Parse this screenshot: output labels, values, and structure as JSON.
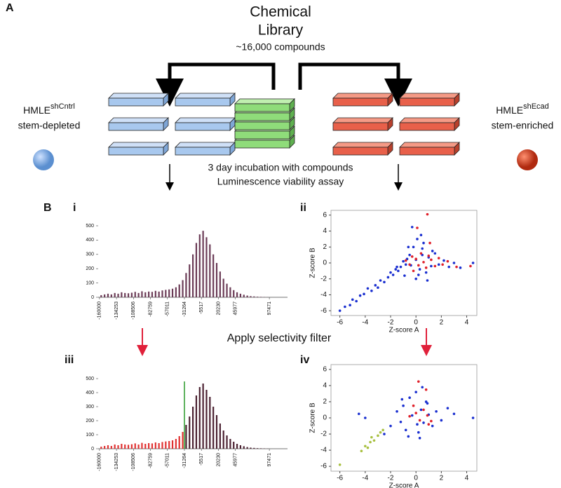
{
  "figure": {
    "panel_a": "A",
    "title_line1": "Chemical",
    "title_line2": "Library",
    "subtitle": "~16,000 compounds",
    "left_cell": {
      "name": "HMLE",
      "superscript": "shCntrl",
      "description": "stem-depleted"
    },
    "right_cell": {
      "name": "HMLE",
      "superscript": "shEcad",
      "description": "stem-enriched"
    },
    "step_line1": "3 day incubation with compounds",
    "step_line2": "Luminescence viability assay",
    "panel_b": "B",
    "sub_i": "i",
    "sub_ii": "ii",
    "sub_iii": "iii",
    "sub_iv": "iv",
    "filter": "Apply selectivity filter"
  },
  "chart_data": [
    {
      "type": "histogram",
      "bins": [
        -160000,
        -154851,
        -149701,
        -144552,
        -139402,
        -134253,
        -129104,
        -123954,
        -118805,
        -113655,
        -108506,
        -103357,
        -98207,
        -93058,
        -87908,
        -82759,
        -77610,
        -72460,
        -67311,
        -62161,
        -57012,
        -51863,
        -46713,
        -41564,
        -36414,
        -31265,
        -26116,
        -20966,
        -15817,
        -10667,
        -5518,
        -369,
        4781,
        9930,
        15080,
        20229,
        25378,
        30528,
        35677,
        40827,
        45976,
        51125,
        56275,
        61424,
        66574,
        71723,
        76872,
        82022,
        87171,
        92321,
        97470
      ],
      "values": [
        15,
        20,
        25,
        20,
        30,
        25,
        35,
        30,
        28,
        32,
        38,
        30,
        42,
        35,
        40,
        38,
        45,
        40,
        48,
        52,
        55,
        60,
        70,
        90,
        120,
        170,
        230,
        300,
        380,
        440,
        465,
        420,
        370,
        300,
        240,
        180,
        130,
        95,
        70,
        50,
        35,
        25,
        18,
        12,
        8,
        6,
        4,
        3,
        2,
        1
      ],
      "color": "#6a3a55",
      "xlim": [
        -162000,
        125000
      ],
      "ylim": [
        0,
        500
      ],
      "xticks": [
        -160000,
        -134253,
        -108506,
        -82759,
        -57011,
        -31264,
        -5517,
        20230,
        45977,
        97471
      ],
      "yticks": [
        0,
        100,
        200,
        300,
        400,
        500
      ]
    },
    {
      "type": "scatter",
      "xlabel": "Z-score A",
      "ylabel": "Z-score B",
      "xlim": [
        -6.7,
        4.8
      ],
      "ylim": [
        -6.6,
        6.6
      ],
      "xticks": [
        -6,
        -4,
        -2,
        0,
        2,
        4
      ],
      "yticks": [
        -6,
        -4,
        -2,
        0,
        2,
        4,
        6
      ],
      "series": [
        {
          "color": "#1a2fd0",
          "x": [
            -6,
            -5.6,
            -5.2,
            -5,
            -4.7,
            -4.4,
            -4.1,
            -3.8,
            -3.5,
            -3.2,
            -3,
            -2.8,
            -2.5,
            -2.2,
            -2,
            -1.8,
            -1.6,
            -1.4,
            -1.2,
            -1,
            -0.9,
            -0.7,
            -0.5,
            -0.4,
            -0.2,
            0,
            0.1,
            0.3,
            0.5,
            0.6,
            0.8,
            1,
            1.2,
            1.5,
            1.8,
            2.2,
            2.6,
            3,
            3.5,
            4.5,
            -0.3,
            0,
            0.2,
            0.4,
            -0.6,
            0.9,
            -1.5,
            -0.8,
            0.5,
            1.3
          ],
          "y": [
            -6,
            -5.5,
            -5.3,
            -4.6,
            -4.8,
            -4.1,
            -3.9,
            -3.2,
            -3.5,
            -2.8,
            -3.1,
            -2.2,
            -2.4,
            -1.8,
            -1.2,
            -1.5,
            -0.8,
            -1,
            -0.5,
            0.2,
            -1.6,
            0.5,
            1,
            -0.3,
            2,
            0.4,
            3,
            -0.8,
            1.8,
            2.5,
            -1.2,
            0.7,
            -0.4,
            1.2,
            -0.2,
            0.3,
            -0.5,
            0,
            -0.6,
            0,
            4.5,
            -2,
            -1.5,
            3.5,
            2,
            -2.2,
            -0.5,
            -0.2,
            1,
            1.5
          ]
        },
        {
          "color": "#e0202a",
          "x": [
            -0.8,
            -0.5,
            -0.3,
            0,
            0.2,
            0.4,
            0.6,
            0.8,
            1,
            1.2,
            1.5,
            1.8,
            2.1,
            2.5,
            3.2,
            4.3,
            0.9,
            0.1,
            -0.2,
            1.1
          ],
          "y": [
            0.3,
            -0.2,
            0.8,
            0.5,
            -0.3,
            1.2,
            0.1,
            -0.6,
            0.9,
            0.4,
            -0.4,
            0.6,
            -0.2,
            0.2,
            -0.5,
            -0.4,
            6.1,
            4.4,
            -1,
            2.5
          ]
        }
      ]
    },
    {
      "type": "histogram",
      "bins": [
        -160000,
        -154851,
        -149701,
        -144552,
        -139402,
        -134253,
        -129104,
        -123954,
        -118805,
        -113655,
        -108506,
        -103357,
        -98207,
        -93058,
        -87908,
        -82759,
        -77610,
        -72460,
        -67311,
        -62161,
        -57012,
        -51863,
        -46713,
        -41564,
        -36414,
        -31265,
        -26116,
        -20966,
        -15817,
        -10667,
        -5518,
        -369,
        4781,
        9930,
        15080,
        20229,
        25378,
        30528,
        35677,
        40827,
        45976,
        51125,
        56275,
        61424,
        66574,
        71723,
        76872,
        82022,
        87171,
        92321,
        97470
      ],
      "values": [
        15,
        20,
        25,
        20,
        30,
        25,
        35,
        30,
        28,
        32,
        38,
        30,
        42,
        35,
        40,
        38,
        45,
        40,
        48,
        52,
        55,
        60,
        70,
        90,
        120,
        170,
        230,
        300,
        380,
        440,
        465,
        420,
        370,
        300,
        240,
        180,
        130,
        95,
        70,
        50,
        35,
        25,
        18,
        12,
        8,
        6,
        4,
        3,
        2,
        1
      ],
      "color": "#4a2030",
      "below_color": "#e03030",
      "threshold_line": {
        "value": -31264,
        "color": "#2a9a2a"
      },
      "xlim": [
        -162000,
        125000
      ],
      "ylim": [
        0,
        500
      ],
      "xticks": [
        -160000,
        -134253,
        -108506,
        -82759,
        -57011,
        -31264,
        -5517,
        20230,
        45977,
        97471
      ],
      "yticks": [
        0,
        100,
        200,
        300,
        400,
        500
      ]
    },
    {
      "type": "scatter",
      "xlabel": "Z-score A",
      "ylabel": "Z-score B",
      "xlim": [
        -6.7,
        4.8
      ],
      "ylim": [
        -6.6,
        6.6
      ],
      "xticks": [
        -6,
        -4,
        -2,
        0,
        2,
        4
      ],
      "yticks": [
        -6,
        -4,
        -2,
        0,
        2,
        4,
        6
      ],
      "series": [
        {
          "color": "#1a2fd0",
          "x": [
            -4.5,
            -4,
            -2.5,
            -2,
            -1.5,
            -1.2,
            -1,
            -0.8,
            -0.5,
            -0.3,
            0,
            0.2,
            0.4,
            0.6,
            0.8,
            1,
            1.3,
            1.6,
            2,
            2.5,
            3,
            4.5,
            -0.6,
            0.3,
            0.9,
            -1.1,
            0.5,
            0.1
          ],
          "y": [
            0.5,
            0,
            -2,
            -1,
            0.8,
            -0.5,
            1.5,
            -1.5,
            2.5,
            0.3,
            3.2,
            -1.8,
            1,
            -0.6,
            2,
            0.4,
            -1,
            0.8,
            -0.3,
            1.2,
            0.5,
            0,
            -2.3,
            -2.5,
            1.8,
            2.3,
            3.8,
            -0.8
          ]
        },
        {
          "color": "#e0202a",
          "x": [
            -0.5,
            0,
            0.3,
            0.6,
            0.9,
            1.2,
            0.2,
            0.8,
            -0.2,
            1
          ],
          "y": [
            0.2,
            0.6,
            -0.3,
            1,
            0.3,
            -0.4,
            4.5,
            3.5,
            1.5,
            -0.8
          ]
        },
        {
          "color": "#a8c040",
          "x": [
            -6,
            -4.3,
            -4,
            -3.8,
            -3.6,
            -3.3,
            -3,
            -2.8,
            -2.6,
            -3.5
          ],
          "y": [
            -5.8,
            -4.1,
            -3.5,
            -3.7,
            -3,
            -2.8,
            -2.2,
            -1.8,
            -1.5,
            -2.4
          ]
        }
      ]
    }
  ]
}
